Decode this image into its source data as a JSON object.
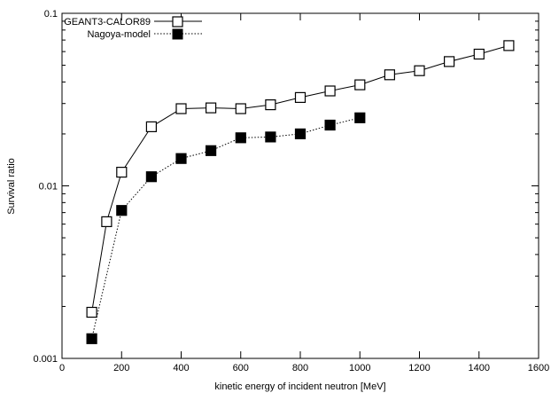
{
  "chart_data": {
    "type": "line",
    "title": "",
    "xlabel": "kinetic energy of incident neutron [MeV]",
    "ylabel": "Survival ratio",
    "xlim": [
      0,
      1600
    ],
    "ylim": [
      0.001,
      0.1
    ],
    "yscale": "log",
    "xticks": [
      0,
      200,
      400,
      600,
      800,
      1000,
      1200,
      1400,
      1600
    ],
    "yticks": [
      0.001,
      0.01,
      0.1
    ],
    "xtick_labels": [
      "0",
      "200",
      "400",
      "600",
      "800",
      "1000",
      "1200",
      "1400",
      "1600"
    ],
    "ytick_labels": [
      "0.001",
      "0.01",
      "0.1"
    ],
    "grid": false,
    "legend_position": "top-left",
    "series": [
      {
        "name": "GEANT3-CALOR89",
        "marker": "open-square",
        "line": "solid",
        "x": [
          100,
          150,
          200,
          300,
          400,
          500,
          600,
          700,
          800,
          900,
          1000,
          1100,
          1200,
          1300,
          1400,
          1500
        ],
        "y": [
          0.00185,
          0.0062,
          0.012,
          0.022,
          0.028,
          0.0283,
          0.028,
          0.0295,
          0.0325,
          0.0355,
          0.0385,
          0.044,
          0.0465,
          0.0525,
          0.058,
          0.065
        ]
      },
      {
        "name": "Nagoya-model",
        "marker": "filled-square",
        "line": "dotted",
        "x": [
          100,
          200,
          300,
          400,
          500,
          600,
          700,
          800,
          900,
          1000
        ],
        "y": [
          0.0013,
          0.0072,
          0.0113,
          0.0144,
          0.016,
          0.019,
          0.0192,
          0.02,
          0.0225,
          0.0248
        ]
      }
    ]
  }
}
